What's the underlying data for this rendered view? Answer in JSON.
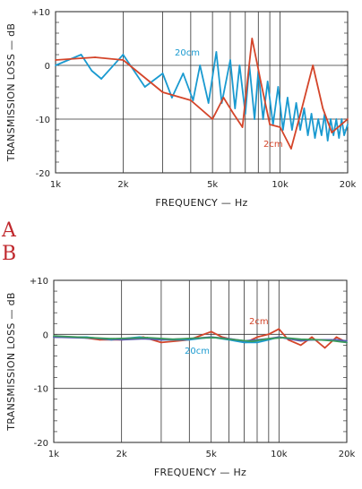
{
  "panel_labels": [
    "A",
    "B"
  ],
  "chart_data": [
    {
      "type": "line",
      "xlabel": "FREQUENCY — Hz",
      "ylabel": "TRANSMISSION LOSS — dB",
      "x_scale": "log",
      "xlim": [
        1000,
        20000
      ],
      "ylim": [
        -20,
        10
      ],
      "x_tick_values": [
        1000,
        2000,
        5000,
        10000,
        20000
      ],
      "x_tick_labels": [
        "1k",
        "2k",
        "5k",
        "10k",
        "20k"
      ],
      "y_tick_values": [
        10,
        0,
        -10,
        -20
      ],
      "y_tick_labels": [
        "+10",
        "0",
        "-10",
        "-20"
      ],
      "series": [
        {
          "name": "20cm",
          "color": "#1a9ad0",
          "points": [
            [
              1000,
              0
            ],
            [
              1300,
              2
            ],
            [
              1450,
              -1
            ],
            [
              1600,
              -2.5
            ],
            [
              2000,
              2
            ],
            [
              2500,
              -4
            ],
            [
              3000,
              -1.5
            ],
            [
              3300,
              -6
            ],
            [
              3700,
              -1.5
            ],
            [
              4100,
              -6.5
            ],
            [
              4400,
              0
            ],
            [
              4800,
              -7
            ],
            [
              5200,
              2.5
            ],
            [
              5500,
              -7
            ],
            [
              6000,
              1
            ],
            [
              6300,
              -8
            ],
            [
              6600,
              0
            ],
            [
              7000,
              -9
            ],
            [
              7300,
              0
            ],
            [
              7700,
              -10
            ],
            [
              8000,
              -1
            ],
            [
              8400,
              -10
            ],
            [
              8800,
              -3
            ],
            [
              9300,
              -11
            ],
            [
              9800,
              -4
            ],
            [
              10300,
              -12
            ],
            [
              10800,
              -6
            ],
            [
              11300,
              -12
            ],
            [
              11800,
              -7
            ],
            [
              12300,
              -12
            ],
            [
              12800,
              -8
            ],
            [
              13300,
              -13
            ],
            [
              13800,
              -9
            ],
            [
              14300,
              -13.5
            ],
            [
              14800,
              -10
            ],
            [
              15300,
              -13
            ],
            [
              15800,
              -9
            ],
            [
              16300,
              -14
            ],
            [
              16800,
              -10
            ],
            [
              17300,
              -13
            ],
            [
              17800,
              -10
            ],
            [
              18300,
              -13.5
            ],
            [
              18800,
              -10
            ],
            [
              19300,
              -13
            ],
            [
              20000,
              -11
            ]
          ]
        },
        {
          "name": "2cm",
          "color": "#d4452a",
          "points": [
            [
              1000,
              1
            ],
            [
              1500,
              1.5
            ],
            [
              2000,
              1
            ],
            [
              3000,
              -5
            ],
            [
              4000,
              -6.5
            ],
            [
              5000,
              -10
            ],
            [
              5600,
              -6
            ],
            [
              6200,
              -9
            ],
            [
              6800,
              -11.5
            ],
            [
              7500,
              5
            ],
            [
              8200,
              -3
            ],
            [
              9000,
              -11
            ],
            [
              10000,
              -11.5
            ],
            [
              11200,
              -15.5
            ],
            [
              12500,
              -8
            ],
            [
              14000,
              0
            ],
            [
              15500,
              -8
            ],
            [
              17000,
              -12.5
            ],
            [
              20000,
              -10
            ]
          ]
        }
      ],
      "annotations": [
        "20cm",
        "2cm"
      ]
    },
    {
      "type": "line",
      "xlabel": "FREQUENCY — Hz",
      "ylabel": "TRANSMISSION LOSS — dB",
      "x_scale": "log",
      "xlim": [
        1000,
        20000
      ],
      "ylim": [
        -20,
        10
      ],
      "x_tick_values": [
        1000,
        2000,
        5000,
        10000,
        20000
      ],
      "x_tick_labels": [
        "1k",
        "2k",
        "5k",
        "10k",
        "20k"
      ],
      "y_tick_values": [
        10,
        0,
        -10,
        -20
      ],
      "y_tick_labels": [
        "+10",
        "0",
        "-10",
        "-20"
      ],
      "series": [
        {
          "name": "2cm",
          "color": "#d4452a",
          "points": [
            [
              1000,
              -0.5
            ],
            [
              1300,
              -0.5
            ],
            [
              1600,
              -1
            ],
            [
              2000,
              -1
            ],
            [
              2500,
              -0.5
            ],
            [
              3000,
              -1.5
            ],
            [
              4000,
              -1
            ],
            [
              5000,
              0.5
            ],
            [
              5600,
              -0.5
            ],
            [
              6300,
              -1
            ],
            [
              7100,
              -1.5
            ],
            [
              8000,
              -0.5
            ],
            [
              9000,
              0
            ],
            [
              10000,
              1
            ],
            [
              11000,
              -1
            ],
            [
              12500,
              -2
            ],
            [
              14000,
              -0.5
            ],
            [
              16000,
              -2.5
            ],
            [
              18000,
              -0.5
            ],
            [
              20000,
              -1.5
            ]
          ]
        },
        {
          "name": "20cm",
          "color": "#1a9ad0",
          "points": [
            [
              1000,
              -0.5
            ],
            [
              1400,
              -0.5
            ],
            [
              1800,
              -1
            ],
            [
              2400,
              -0.5
            ],
            [
              3000,
              -1
            ],
            [
              4000,
              -1
            ],
            [
              5000,
              -0.5
            ],
            [
              6000,
              -1
            ],
            [
              7000,
              -1.5
            ],
            [
              8000,
              -1.5
            ],
            [
              9000,
              -1
            ],
            [
              10000,
              -0.5
            ],
            [
              12000,
              -1
            ],
            [
              14000,
              -1
            ],
            [
              16000,
              -1
            ],
            [
              18000,
              -1
            ],
            [
              20000,
              -1.5
            ]
          ]
        },
        {
          "name": "",
          "color": "#5b5bb0",
          "points": [
            [
              1000,
              -0.5
            ],
            [
              1500,
              -0.7
            ],
            [
              2000,
              -1
            ],
            [
              2500,
              -0.8
            ],
            [
              3000,
              -1
            ],
            [
              4000,
              -0.8
            ],
            [
              5000,
              -0.5
            ],
            [
              6000,
              -0.8
            ],
            [
              7000,
              -1.2
            ],
            [
              8000,
              -1
            ],
            [
              9000,
              -0.8
            ],
            [
              10000,
              -0.5
            ],
            [
              11000,
              -0.8
            ],
            [
              12500,
              -1.2
            ],
            [
              14000,
              -1
            ],
            [
              16000,
              -1
            ],
            [
              18000,
              -1
            ],
            [
              20000,
              -1.2
            ]
          ]
        },
        {
          "name": "",
          "color": "#3a9a5c",
          "points": [
            [
              1000,
              -0.3
            ],
            [
              1800,
              -0.8
            ],
            [
              2600,
              -0.6
            ],
            [
              3400,
              -0.9
            ],
            [
              4200,
              -0.7
            ],
            [
              5200,
              -0.6
            ],
            [
              6400,
              -1
            ],
            [
              7600,
              -1.3
            ],
            [
              9000,
              -0.8
            ],
            [
              10500,
              -0.6
            ],
            [
              12500,
              -0.9
            ],
            [
              15000,
              -1
            ],
            [
              17500,
              -1.2
            ],
            [
              20000,
              -1.5
            ]
          ]
        }
      ],
      "annotations": [
        "2cm",
        "20cm"
      ]
    }
  ]
}
